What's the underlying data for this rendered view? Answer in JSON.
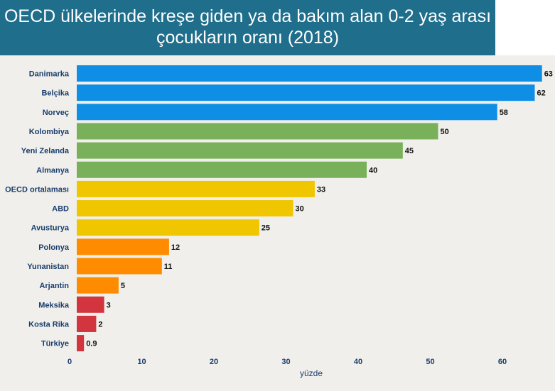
{
  "chart_data": {
    "type": "bar",
    "orientation": "horizontal",
    "title_line1": "OECD ülkelerinde kreşe giden ya da bakım alan 0-2 yaş arası",
    "title_line2": "çocukların oranı (2018)",
    "xlabel": "yüzde",
    "ylabel": "",
    "xlim": [
      0,
      65
    ],
    "xticks": [
      "0",
      "10",
      "20",
      "30",
      "40",
      "50",
      "60"
    ],
    "categories": [
      "Danimarka",
      "Belçika",
      "Norveç",
      "Kolombiya",
      "Yeni Zelanda",
      "Almanya",
      "OECD ortalaması",
      "ABD",
      "Avusturya",
      "Polonya",
      "Yunanistan",
      "Arjantin",
      "Meksika",
      "Kosta Rika",
      "Türkiye"
    ],
    "values": [
      63,
      62,
      58,
      50,
      45,
      40,
      33,
      30,
      25,
      12,
      11,
      5,
      3,
      2,
      0.9
    ],
    "value_labels": [
      "63",
      "62",
      "58",
      "50",
      "45",
      "40",
      "33",
      "30",
      "25",
      "12",
      "11",
      "5",
      "3",
      "2",
      "0.9"
    ],
    "bar_lengths": [
      64.5,
      63.5,
      58.3,
      50.1,
      45.2,
      40.2,
      33.0,
      30.0,
      25.3,
      12.8,
      11.8,
      5.8,
      3.8,
      2.7,
      1.0
    ],
    "colors": [
      "#0f8ee6",
      "#0f8ee6",
      "#0f8ee6",
      "#79b05a",
      "#79b05a",
      "#79b05a",
      "#efc600",
      "#efc600",
      "#efc600",
      "#ff8c00",
      "#ff8c00",
      "#ff8c00",
      "#d2353e",
      "#d2353e",
      "#d2353e"
    ],
    "grid": false
  }
}
